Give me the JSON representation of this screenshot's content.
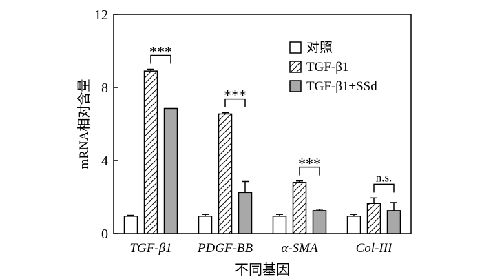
{
  "chart_data": {
    "type": "bar",
    "xlabel": "不同基因",
    "ylabel": "mRNA相对含量",
    "ylim": [
      0,
      12
    ],
    "yticks": [
      0,
      4,
      8,
      12
    ],
    "grid": false,
    "legend_position": "top-right",
    "categories": [
      "TGF-β1",
      "PDGF-BB",
      "α-SMA",
      "Col-III"
    ],
    "series": [
      {
        "name": "对照",
        "pattern": "open",
        "values": [
          0.95,
          0.95,
          0.95,
          0.95
        ],
        "errors": [
          0.05,
          0.1,
          0.1,
          0.1
        ]
      },
      {
        "name": "TGF-β1",
        "pattern": "hatched",
        "values": [
          8.9,
          6.55,
          2.8,
          1.65
        ],
        "errors": [
          0.1,
          0.07,
          0.08,
          0.3
        ]
      },
      {
        "name": "TGF-β1+SSd",
        "pattern": "gray",
        "values": [
          6.85,
          2.25,
          1.25,
          1.25
        ],
        "errors": [
          0.0,
          0.6,
          0.08,
          0.45
        ]
      }
    ],
    "annotations": [
      {
        "category": "TGF-β1",
        "text": "***"
      },
      {
        "category": "PDGF-BB",
        "text": "***"
      },
      {
        "category": "α-SMA",
        "text": "***"
      },
      {
        "category": "Col-III",
        "text": "n.s."
      }
    ],
    "colors": {
      "open": "#ffffff",
      "gray": "#a8a8a8",
      "stroke": "#000000"
    }
  }
}
